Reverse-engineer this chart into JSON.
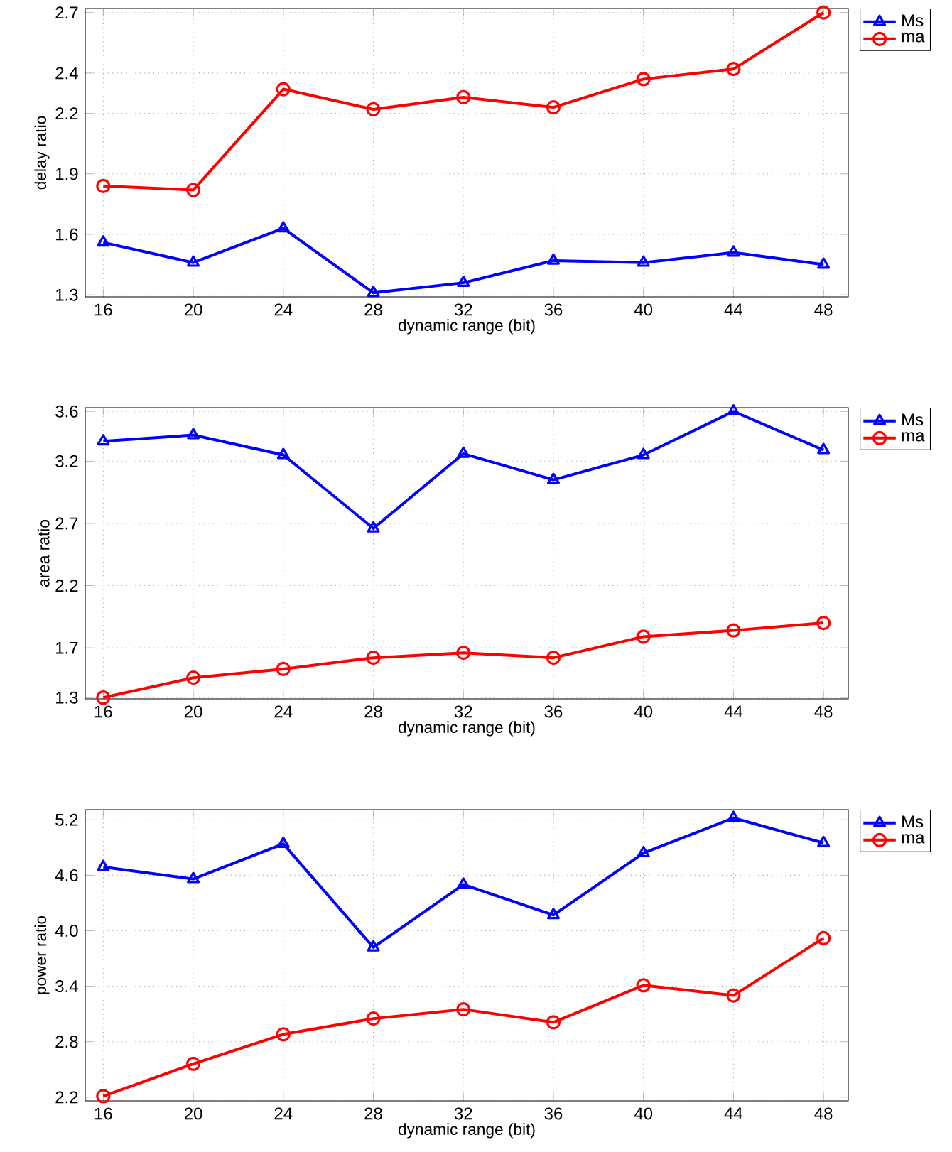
{
  "chart_data": [
    {
      "type": "line",
      "xlabel": "dynamic range (bit)",
      "ylabel": "delay ratio",
      "x": [
        16,
        20,
        24,
        28,
        32,
        36,
        40,
        44,
        48
      ],
      "xlim": [
        15.2,
        49.1
      ],
      "xticks": [
        16,
        20,
        24,
        28,
        32,
        36,
        40,
        44,
        48
      ],
      "ylim": [
        1.29,
        2.72
      ],
      "yticks": [
        1.3,
        1.6,
        1.9,
        2.2,
        2.4,
        2.7
      ],
      "grid": true,
      "legend": "right",
      "line_style": "solid",
      "series": [
        {
          "name": "Ms",
          "color": "#0000ff",
          "marker": "triangle",
          "values": [
            1.56,
            1.46,
            1.63,
            1.31,
            1.36,
            1.47,
            1.46,
            1.51,
            1.45
          ]
        },
        {
          "name": "ma",
          "color": "#ff0000",
          "marker": "circle",
          "values": [
            1.84,
            1.82,
            2.32,
            2.22,
            2.28,
            2.23,
            2.37,
            2.42,
            2.7
          ]
        }
      ]
    },
    {
      "type": "line",
      "xlabel": "dynamic range (bit)",
      "ylabel": "area ratio",
      "x": [
        16,
        20,
        24,
        28,
        32,
        36,
        40,
        44,
        48
      ],
      "xlim": [
        15.2,
        49.1
      ],
      "xticks": [
        16,
        20,
        24,
        28,
        32,
        36,
        40,
        44,
        48
      ],
      "ylim": [
        1.29,
        3.63
      ],
      "yticks": [
        1.3,
        1.7,
        2.2,
        2.7,
        3.2,
        3.6
      ],
      "grid": true,
      "legend": "right",
      "line_style": "solid",
      "series": [
        {
          "name": "Ms",
          "color": "#0000ff",
          "marker": "triangle",
          "values": [
            3.36,
            3.41,
            3.25,
            2.66,
            3.26,
            3.05,
            3.25,
            3.6,
            3.29
          ]
        },
        {
          "name": "ma",
          "color": "#ff0000",
          "marker": "circle",
          "values": [
            1.3,
            1.46,
            1.53,
            1.62,
            1.66,
            1.62,
            1.79,
            1.84,
            1.9
          ]
        }
      ]
    },
    {
      "type": "line",
      "xlabel": "dynamic range (bit)",
      "ylabel": "power ratio",
      "x": [
        16,
        20,
        24,
        28,
        32,
        36,
        40,
        44,
        48
      ],
      "xlim": [
        15.2,
        49.1
      ],
      "xticks": [
        16,
        20,
        24,
        28,
        32,
        36,
        40,
        44,
        48
      ],
      "ylim": [
        2.16,
        5.31
      ],
      "yticks": [
        {
          "value": 2.2,
          "label": "2.2"
        },
        {
          "value": 2.8,
          "label": "2.8"
        },
        {
          "value": 3.4,
          "label": "3.4"
        },
        {
          "value": 4.0,
          "label": "4.0"
        },
        {
          "value": 4.6,
          "label": "4.6"
        },
        5.2
      ],
      "grid": true,
      "legend": "right",
      "line_style": "solid",
      "series": [
        {
          "name": "Ms",
          "color": "#0000ff",
          "marker": "triangle",
          "values": [
            4.69,
            4.56,
            4.94,
            3.82,
            4.5,
            4.17,
            4.84,
            5.22,
            4.95
          ]
        },
        {
          "name": "ma",
          "color": "#ff0000",
          "marker": "circle",
          "values": [
            2.21,
            2.56,
            2.88,
            3.05,
            3.15,
            3.01,
            3.41,
            3.3,
            3.92
          ]
        }
      ]
    }
  ]
}
